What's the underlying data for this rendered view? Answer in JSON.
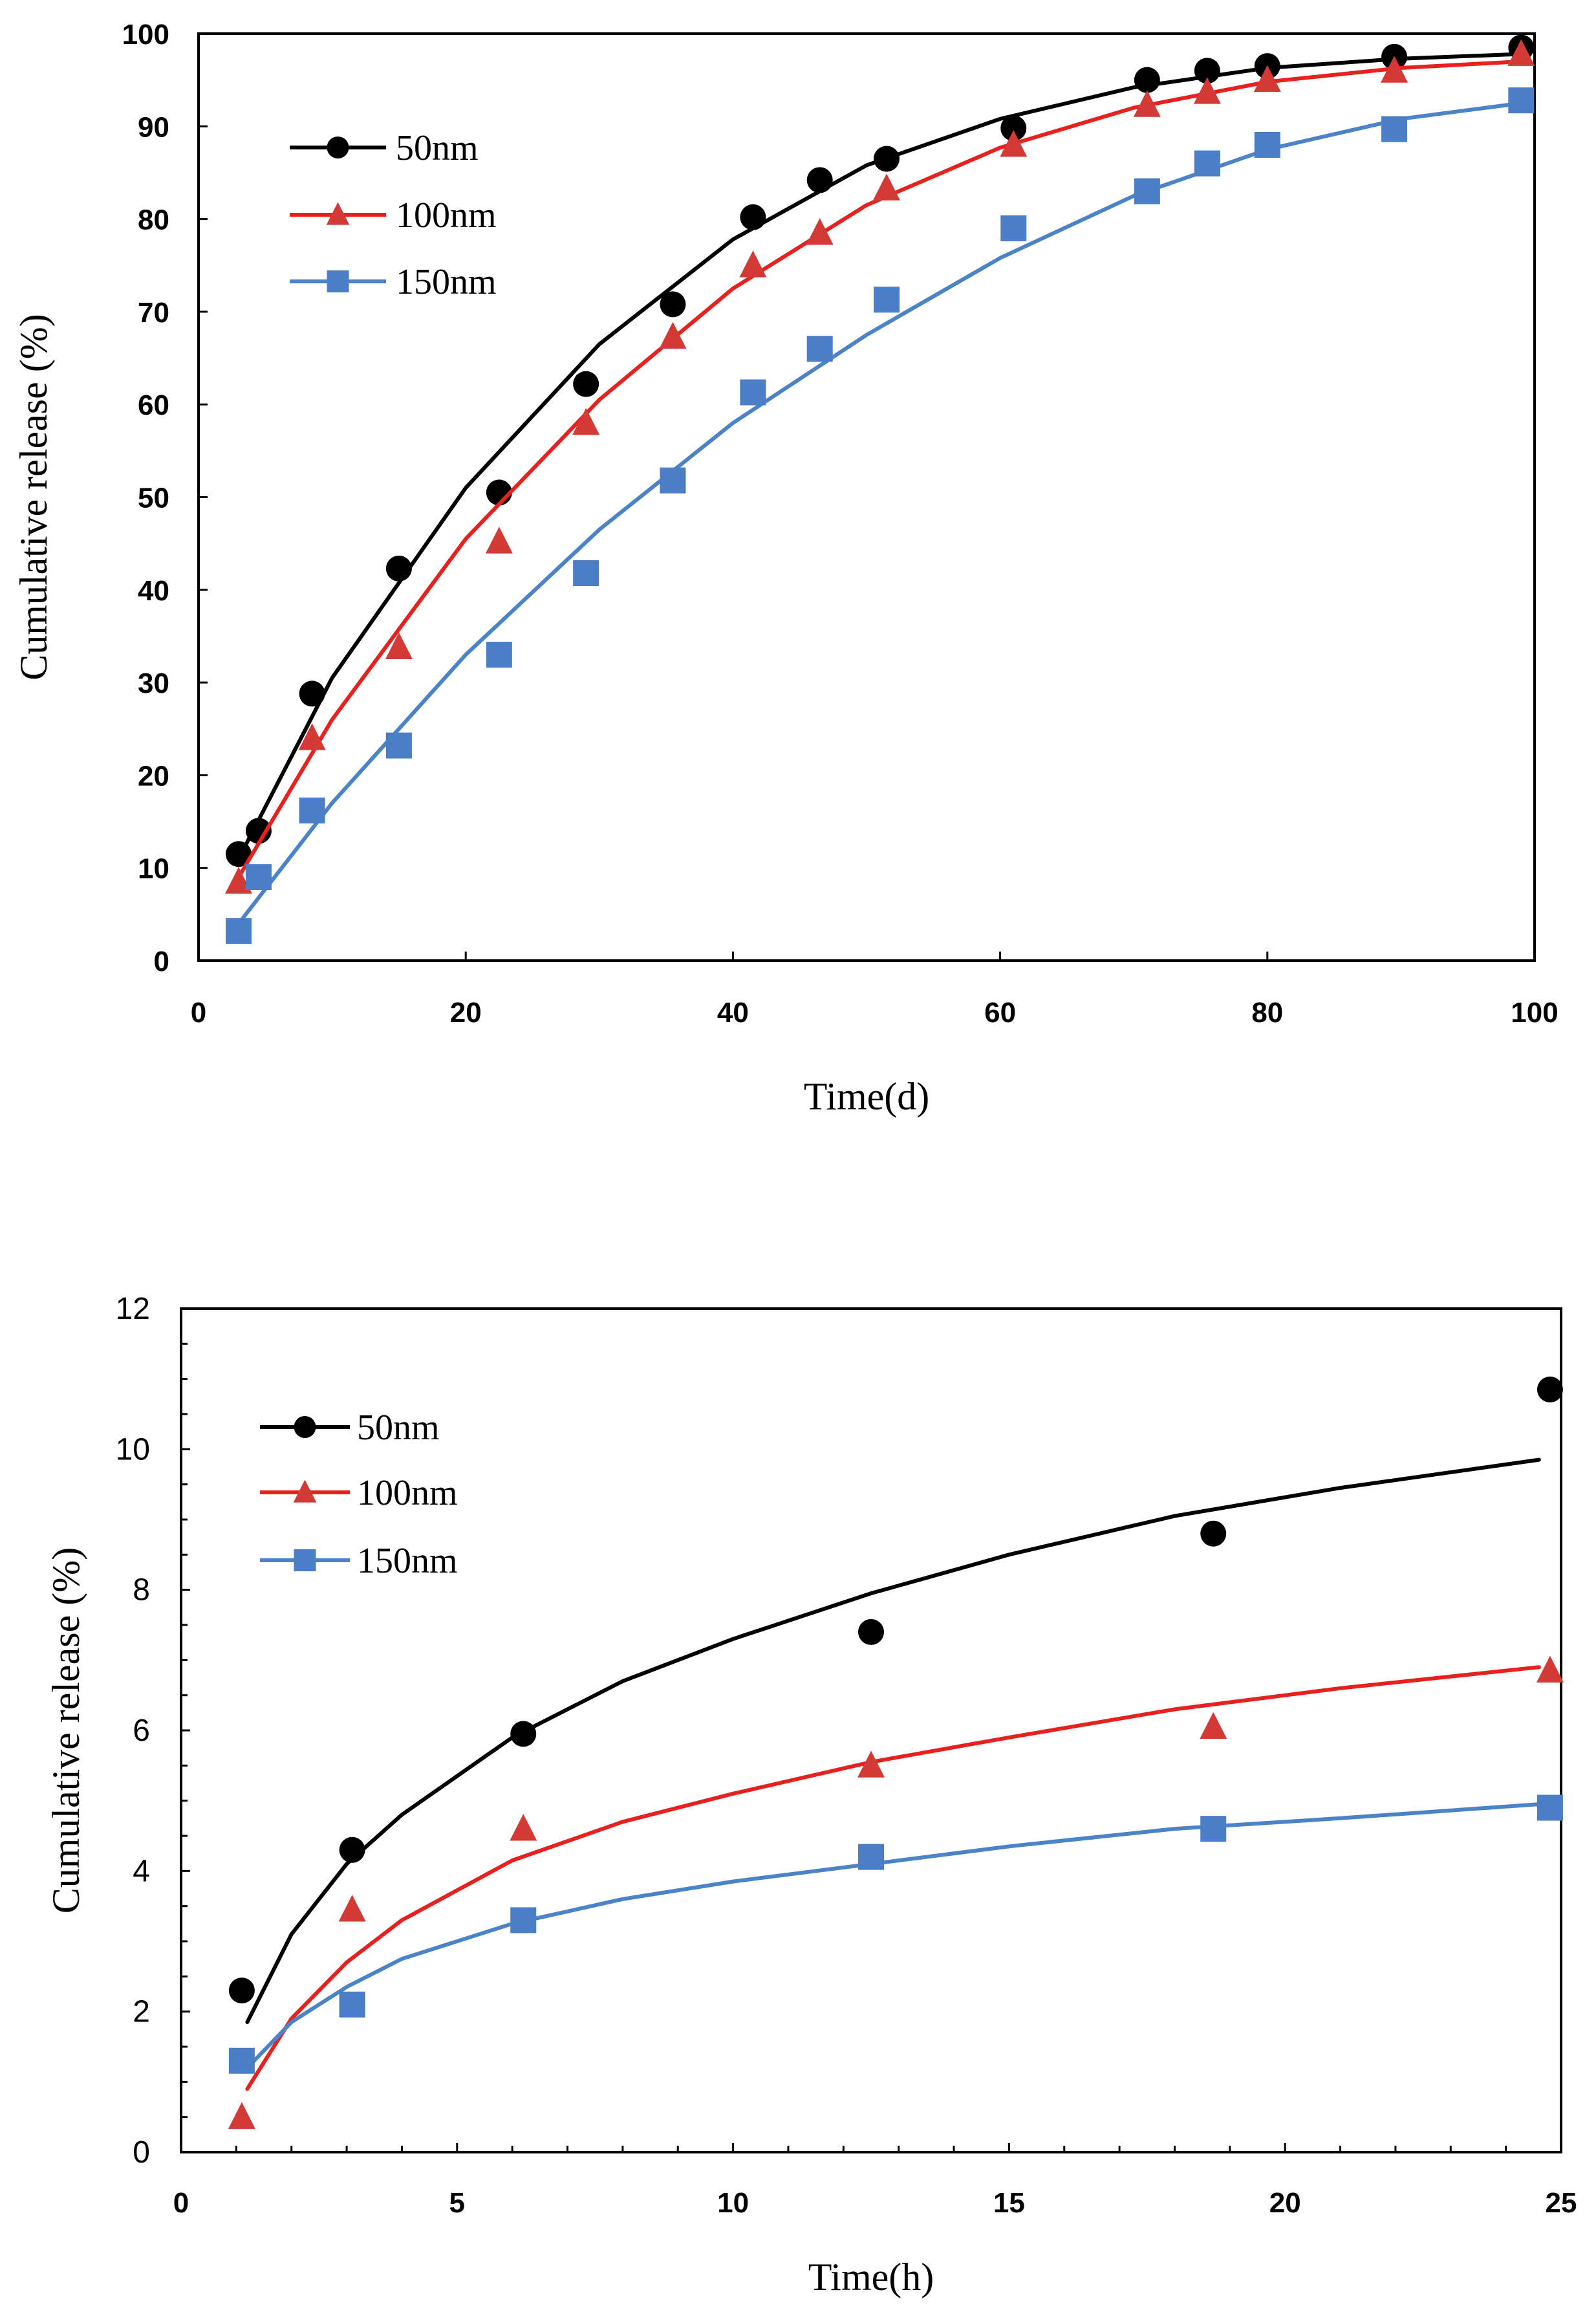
{
  "colors": {
    "50nm": "#000000",
    "100nm": "#e8211f",
    "150nm": "#4a83c8",
    "marker_100nm": "#d43a35",
    "marker_150nm": "#4a7fc8"
  },
  "chart_data": [
    {
      "type": "scatter",
      "title": "",
      "xlabel": "Time(d)",
      "ylabel": "Cumulative release (%)",
      "xlim": [
        0,
        100
      ],
      "ylim": [
        0,
        100
      ],
      "x_ticks": [
        0,
        20,
        40,
        60,
        80,
        100
      ],
      "y_ticks": [
        0,
        10,
        20,
        30,
        40,
        50,
        60,
        70,
        80,
        90,
        100
      ],
      "grid": false,
      "legend_position": "top-left",
      "series": [
        {
          "name": "50nm",
          "marker": "circle",
          "color_key": "50nm",
          "points": [
            [
              3,
              11.5
            ],
            [
              4.5,
              14
            ],
            [
              8.5,
              28.8
            ],
            [
              15,
              42.3
            ],
            [
              22.5,
              50.5
            ],
            [
              29,
              62.2
            ],
            [
              35.5,
              70.8
            ],
            [
              41.5,
              80.2
            ],
            [
              46.5,
              84.2
            ],
            [
              51.5,
              86.5
            ],
            [
              61,
              89.8
            ],
            [
              71,
              95
            ],
            [
              75.5,
              96
            ],
            [
              80,
              96.5
            ],
            [
              89.5,
              97.5
            ],
            [
              99,
              98.5
            ]
          ],
          "fit": [
            [
              3,
              11
            ],
            [
              10,
              30.5
            ],
            [
              20,
              51
            ],
            [
              30,
              66.5
            ],
            [
              40,
              77.8
            ],
            [
              50,
              85.8
            ],
            [
              60,
              90.8
            ],
            [
              70,
              94.2
            ],
            [
              80,
              96.3
            ],
            [
              90,
              97.3
            ],
            [
              99,
              97.8
            ]
          ]
        },
        {
          "name": "100nm",
          "marker": "triangle",
          "color_key": "100nm",
          "points": [
            [
              3,
              8.5
            ],
            [
              8.5,
              24
            ],
            [
              15,
              33.8
            ],
            [
              22.5,
              45.2
            ],
            [
              29,
              58
            ],
            [
              35.5,
              67.3
            ],
            [
              41.5,
              75
            ],
            [
              46.5,
              78.5
            ],
            [
              51.5,
              83.3
            ],
            [
              61,
              88
            ],
            [
              71,
              92.3
            ],
            [
              75.5,
              93.7
            ],
            [
              80,
              95
            ],
            [
              89.5,
              96
            ],
            [
              99,
              97.8
            ]
          ],
          "fit": [
            [
              3,
              9
            ],
            [
              10,
              26
            ],
            [
              20,
              45.5
            ],
            [
              30,
              60.5
            ],
            [
              40,
              72.5
            ],
            [
              50,
              81.5
            ],
            [
              60,
              87.7
            ],
            [
              70,
              92
            ],
            [
              80,
              94.8
            ],
            [
              90,
              96.3
            ],
            [
              99,
              97
            ]
          ]
        },
        {
          "name": "150nm",
          "marker": "square",
          "color_key": "150nm",
          "points": [
            [
              3,
              3.2
            ],
            [
              4.5,
              9
            ],
            [
              8.5,
              16.2
            ],
            [
              15,
              23.2
            ],
            [
              22.5,
              33
            ],
            [
              29,
              41.8
            ],
            [
              35.5,
              51.8
            ],
            [
              41.5,
              61.3
            ],
            [
              46.5,
              66
            ],
            [
              51.5,
              71.3
            ],
            [
              61,
              79
            ],
            [
              71,
              83
            ],
            [
              75.5,
              86
            ],
            [
              80,
              88
            ],
            [
              89.5,
              89.7
            ],
            [
              99,
              92.8
            ]
          ],
          "fit": [
            [
              3,
              4
            ],
            [
              10,
              17
            ],
            [
              20,
              33
            ],
            [
              30,
              46.5
            ],
            [
              40,
              58
            ],
            [
              50,
              67.5
            ],
            [
              60,
              75.8
            ],
            [
              70,
              82.5
            ],
            [
              80,
              87.5
            ],
            [
              90,
              90.8
            ],
            [
              99,
              92.5
            ]
          ]
        }
      ]
    },
    {
      "type": "scatter",
      "title": "",
      "xlabel": "Time(h)",
      "ylabel": "Cumulative release (%)",
      "xlim": [
        0,
        25
      ],
      "ylim": [
        0,
        12
      ],
      "x_ticks": [
        0,
        5,
        10,
        15,
        20,
        25
      ],
      "y_ticks": [
        0,
        2,
        4,
        6,
        8,
        10,
        12
      ],
      "grid": false,
      "legend_position": "top-left",
      "series": [
        {
          "name": "50nm",
          "marker": "circle",
          "color_key": "50nm",
          "points": [
            [
              1.1,
              2.3
            ],
            [
              3.1,
              4.3
            ],
            [
              6.2,
              5.95
            ],
            [
              12.5,
              7.4
            ],
            [
              18.7,
              8.8
            ],
            [
              24.8,
              10.85
            ]
          ],
          "fit": [
            [
              1.2,
              1.85
            ],
            [
              2,
              3.1
            ],
            [
              3,
              4.1
            ],
            [
              4,
              4.8
            ],
            [
              6,
              5.9
            ],
            [
              8,
              6.7
            ],
            [
              10,
              7.3
            ],
            [
              12.5,
              7.95
            ],
            [
              15,
              8.5
            ],
            [
              18,
              9.05
            ],
            [
              21,
              9.45
            ],
            [
              24.6,
              9.85
            ]
          ]
        },
        {
          "name": "100nm",
          "marker": "triangle",
          "color_key": "100nm",
          "points": [
            [
              1.1,
              0.5
            ],
            [
              3.1,
              3.45
            ],
            [
              6.2,
              4.6
            ],
            [
              12.5,
              5.5
            ],
            [
              18.7,
              6.05
            ],
            [
              24.8,
              6.85
            ]
          ],
          "fit": [
            [
              1.2,
              0.9
            ],
            [
              2,
              1.9
            ],
            [
              3,
              2.7
            ],
            [
              4,
              3.3
            ],
            [
              6,
              4.15
            ],
            [
              8,
              4.7
            ],
            [
              10,
              5.1
            ],
            [
              12.5,
              5.55
            ],
            [
              15,
              5.9
            ],
            [
              18,
              6.3
            ],
            [
              21,
              6.6
            ],
            [
              24.6,
              6.9
            ]
          ]
        },
        {
          "name": "150nm",
          "marker": "square",
          "color_key": "150nm",
          "points": [
            [
              1.1,
              1.3
            ],
            [
              3.1,
              2.1
            ],
            [
              6.2,
              3.3
            ],
            [
              12.5,
              4.2
            ],
            [
              18.7,
              4.6
            ],
            [
              24.8,
              4.9
            ]
          ],
          "fit": [
            [
              1.2,
              1.2
            ],
            [
              2,
              1.85
            ],
            [
              3,
              2.35
            ],
            [
              4,
              2.75
            ],
            [
              6,
              3.25
            ],
            [
              8,
              3.6
            ],
            [
              10,
              3.85
            ],
            [
              12.5,
              4.1
            ],
            [
              15,
              4.35
            ],
            [
              18,
              4.6
            ],
            [
              21,
              4.75
            ],
            [
              24.6,
              4.95
            ]
          ]
        }
      ]
    }
  ]
}
